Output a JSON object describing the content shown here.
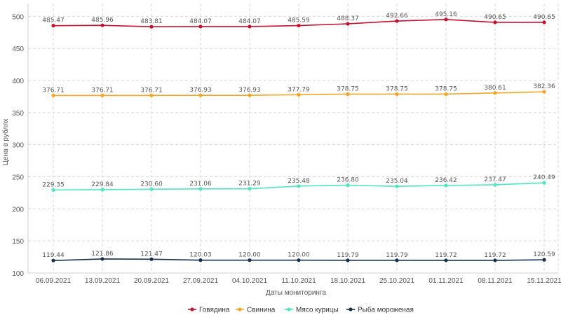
{
  "chart_data": {
    "type": "line",
    "categories": [
      "06.09.2021",
      "13.09.2021",
      "20.09.2021",
      "27.09.2021",
      "04.10.2021",
      "11.10.2021",
      "18.10.2021",
      "25.10.2021",
      "01.11.2021",
      "08.11.2021",
      "15.11.2021"
    ],
    "series": [
      {
        "name": "Говядина",
        "color": "#c8102e",
        "values": [
          485.47,
          485.96,
          483.81,
          484.07,
          484.07,
          485.59,
          488.37,
          492.66,
          495.16,
          490.65,
          490.65
        ],
        "labels": [
          "485.47",
          "485.96",
          "483.81",
          "484.07",
          "484.07",
          "485.59",
          "488.37",
          "492.66",
          "495.16",
          "490.65",
          "490.65"
        ]
      },
      {
        "name": "Свинина",
        "color": "#f5a623",
        "values": [
          376.71,
          376.71,
          376.71,
          376.93,
          376.93,
          377.79,
          378.75,
          378.75,
          378.75,
          380.61,
          382.36
        ],
        "labels": [
          "376.71",
          "376.71",
          "376.71",
          "376.93",
          "376.93",
          "377.79",
          "378.75",
          "378.75",
          "378.75",
          "380.61",
          "382.36"
        ]
      },
      {
        "name": "Мясо курицы",
        "color": "#4ee6c0",
        "values": [
          229.35,
          229.84,
          230.6,
          231.06,
          231.29,
          235.48,
          236.8,
          235.04,
          236.42,
          237.47,
          240.49
        ],
        "labels": [
          "229.35",
          "229.84",
          "230.60",
          "231.06",
          "231.29",
          "235.48",
          "236.80",
          "235.04",
          "236.42",
          "237.47",
          "240.49"
        ]
      },
      {
        "name": "Рыба мороженая",
        "color": "#16324a",
        "values": [
          119.44,
          121.86,
          121.47,
          120.03,
          120.0,
          120.0,
          119.79,
          119.79,
          119.72,
          119.72,
          120.59
        ],
        "labels": [
          "119.44",
          "121.86",
          "121.47",
          "120.03",
          "120.00",
          "120.00",
          "119.79",
          "119.79",
          "119.72",
          "119.72",
          "120.59"
        ]
      }
    ],
    "xlabel": "Даты мониторинга",
    "ylabel": "Цена в рублях",
    "ylim": [
      100,
      520
    ],
    "yticks": [
      100,
      150,
      200,
      250,
      300,
      350,
      400,
      450,
      500
    ],
    "grid": true,
    "legend": "bottom-center"
  }
}
